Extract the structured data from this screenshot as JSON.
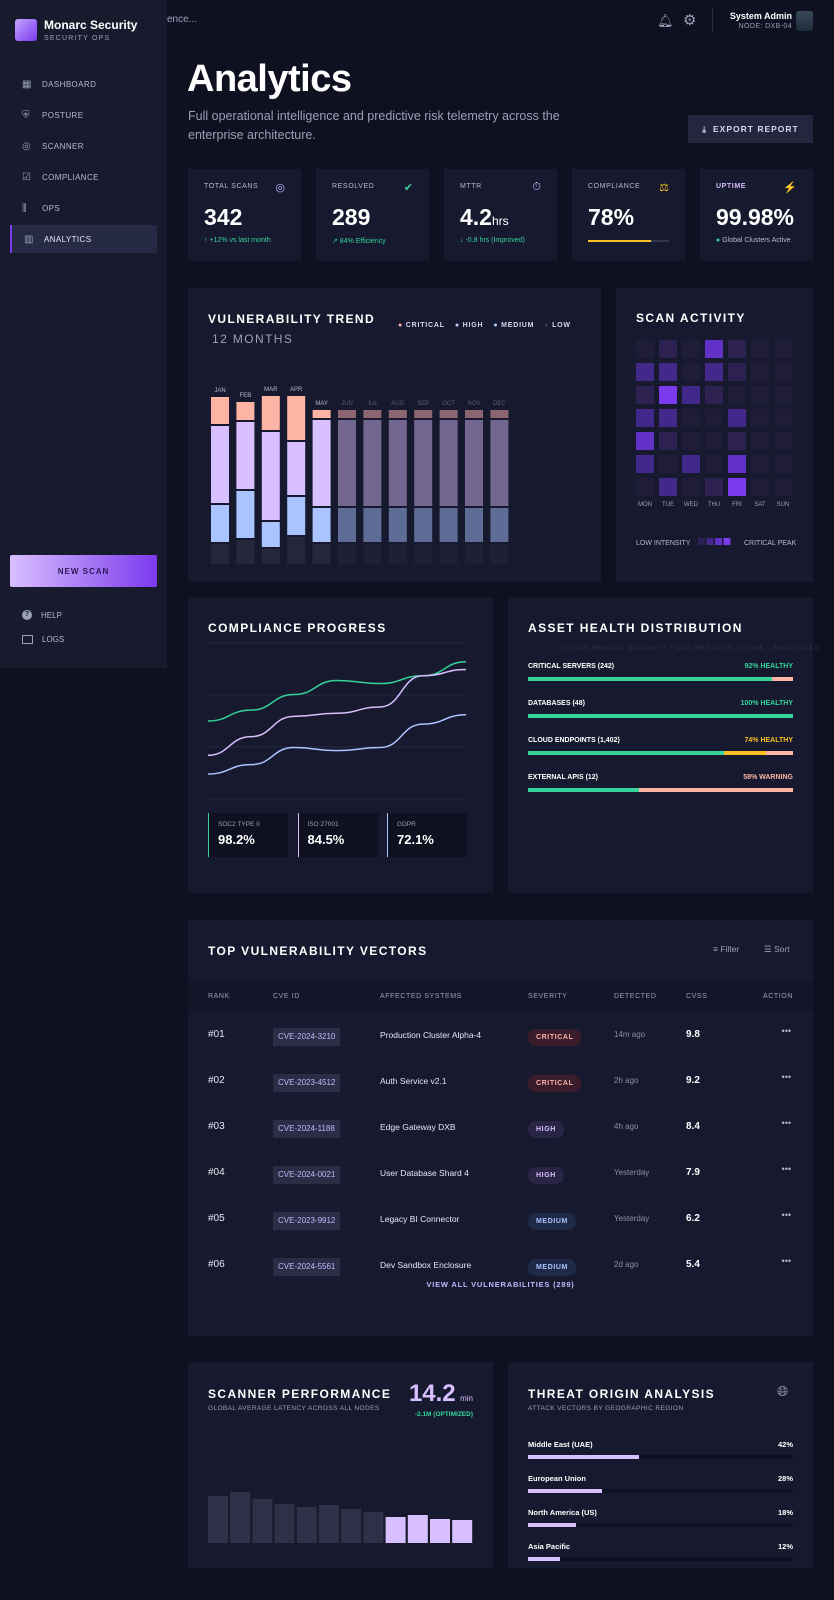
{
  "app": {
    "name": "Monarc Security",
    "subtitle": "SECURITY OPS"
  },
  "sidebar": {
    "items": [
      {
        "label": "DASHBOARD",
        "icon": "dashboard-icon"
      },
      {
        "label": "POSTURE",
        "icon": "shield-icon"
      },
      {
        "label": "SCANNER",
        "icon": "radar-icon"
      },
      {
        "label": "COMPLIANCE",
        "icon": "checklist-icon"
      },
      {
        "label": "OPS",
        "icon": "sliders-icon"
      },
      {
        "label": "ANALYTICS",
        "icon": "chart-icon",
        "active": true
      }
    ],
    "new_scan": "NEW SCAN",
    "help": "HELP",
    "logs": "LOGS"
  },
  "topbar": {
    "search_placeholder_visible": "ence...",
    "user_name": "System Admin",
    "user_node": "NODE: DXB-04"
  },
  "header": {
    "title": "Analytics",
    "subtitle": "Full operational intelligence and predictive risk telemetry across the enterprise architecture.",
    "export": "EXPORT REPORT"
  },
  "kpis": [
    {
      "label": "TOTAL SCANS",
      "value": "342",
      "unit": "",
      "sub": "↑ +12% vs last month",
      "icon": "target-icon",
      "color": "#c4b5fd"
    },
    {
      "label": "RESOLVED",
      "value": "289",
      "unit": "",
      "sub": "↗ 84% Efficiency",
      "icon": "shield-check-icon",
      "color": "#34d399"
    },
    {
      "label": "MTTR",
      "value": "4.2",
      "unit": "hrs",
      "sub": "↓ -0.8 hrs (Improved)",
      "icon": "stopwatch-icon",
      "color": "#c4b5fd"
    },
    {
      "label": "COMPLIANCE",
      "value": "78%",
      "unit": "",
      "sub": "",
      "icon": "gavel-icon",
      "color": "#fbbf24",
      "progress": 78
    },
    {
      "label": "UPTIME",
      "value": "99.98%",
      "unit": "",
      "sub": "Global Clusters Active",
      "icon": "bolt-icon",
      "color": "#c4b5fd"
    }
  ],
  "trend": {
    "title": "VULNERABILITY TREND",
    "period": "12 MONTHS",
    "legend": [
      "CRITICAL",
      "HIGH",
      "MEDIUM",
      "LOW"
    ],
    "colors": [
      "#fdb4a4",
      "#d8bfff",
      "#aac4ff",
      "#25283d"
    ]
  },
  "chart_data": [
    {
      "type": "bar",
      "stacked": true,
      "categories": [
        "JAN",
        "FEB",
        "MAR",
        "APR",
        "MAY",
        "JUN",
        "JUL",
        "AUG",
        "SEP",
        "OCT",
        "NOV",
        "DEC"
      ],
      "series": [
        {
          "name": "CRITICAL",
          "values": [
            29,
            20,
            36,
            46,
            10,
            10,
            10,
            10,
            10,
            10,
            10,
            10
          ]
        },
        {
          "name": "HIGH",
          "values": [
            79,
            69,
            90,
            55,
            88,
            88,
            88,
            88,
            88,
            88,
            88,
            88
          ]
        },
        {
          "name": "MEDIUM",
          "values": [
            39,
            49,
            27,
            40,
            36,
            36,
            36,
            36,
            36,
            36,
            36,
            36
          ]
        },
        {
          "name": "LOW",
          "values": [
            20,
            24,
            15,
            27,
            20,
            20,
            20,
            20,
            20,
            20,
            20,
            20
          ]
        }
      ],
      "projected_from": "JUN"
    },
    {
      "type": "heatmap",
      "title": "SCAN ACTIVITY",
      "x": [
        "MON",
        "TUE",
        "WED",
        "THU",
        "FRI",
        "SAT",
        "SUN"
      ],
      "values": [
        [
          0,
          1,
          0,
          3,
          1,
          0,
          0
        ],
        [
          2,
          2,
          0,
          2,
          1,
          0,
          0
        ],
        [
          1,
          4,
          2,
          1,
          0,
          0,
          0
        ],
        [
          2,
          2,
          0,
          0,
          2,
          0,
          0
        ],
        [
          3,
          1,
          0,
          0,
          1,
          0,
          0
        ],
        [
          2,
          0,
          2,
          0,
          3,
          0,
          0
        ],
        [
          0,
          2,
          0,
          1,
          4,
          0,
          0
        ]
      ],
      "legend_low": "LOW INTENSITY",
      "legend_high": "CRITICAL PEAK"
    },
    {
      "type": "line",
      "title": "COMPLIANCE PROGRESS",
      "series": [
        {
          "name": "SOC2 TYPE II",
          "color": "#34d399",
          "values": [
            50,
            57,
            67,
            76,
            74,
            79,
            88
          ]
        },
        {
          "name": "ISO 27001",
          "color": "#d8bfff",
          "values": [
            28,
            40,
            53,
            55,
            59,
            79,
            83
          ]
        },
        {
          "name": "GDPR",
          "color": "#aac4ff",
          "values": [
            16,
            22,
            33,
            31,
            33,
            48,
            54
          ]
        }
      ]
    },
    {
      "type": "bar",
      "title": "SCANNER PERFORMANCE",
      "values": [
        47,
        51,
        44,
        39,
        36,
        38,
        34,
        31,
        26,
        28,
        24,
        23
      ],
      "highlight_last": 4
    }
  ],
  "compliance": {
    "title": "COMPLIANCE PROGRESS",
    "stats": [
      {
        "label": "SOC2 TYPE II",
        "value": "98.2%",
        "color": "#34d399"
      },
      {
        "label": "ISO 27001",
        "value": "84.5%",
        "color": "#d8bfff"
      },
      {
        "label": "GDPR",
        "value": "72.1%",
        "color": "#aac4ff"
      }
    ]
  },
  "asset": {
    "title": "ASSET HEALTH DISTRIBUTION",
    "watermark": "© 2026 MONARC SECURITY • UAE INFRASTRUCTURE • ENCRYPTED",
    "items": [
      {
        "label": "CRITICAL SERVERS (242)",
        "status": "92% HEALTHY",
        "color": "#34d399",
        "segments": [
          92,
          0,
          8
        ]
      },
      {
        "label": "DATABASES (48)",
        "status": "100% HEALTHY",
        "color": "#34d399",
        "segments": [
          100,
          0,
          0
        ]
      },
      {
        "label": "CLOUD ENDPOINTS (1,402)",
        "status": "74% HEALTHY",
        "color": "#fbbf24",
        "segments": [
          74,
          16,
          10
        ]
      },
      {
        "label": "EXTERNAL APIS (12)",
        "status": "58% WARNING",
        "color": "#fdb4a4",
        "segments": [
          42,
          0,
          58
        ]
      }
    ]
  },
  "table": {
    "title": "TOP VULNERABILITY VECTORS",
    "filter": "Filter",
    "sort": "Sort",
    "columns": [
      "RANK",
      "CVE ID",
      "AFFECTED SYSTEMS",
      "SEVERITY",
      "DETECTED",
      "CVSS",
      "ACTION"
    ],
    "rows": [
      {
        "rank": "#01",
        "cve": "CVE-2024-3210",
        "system": "Production Cluster Alpha-4",
        "severity": "CRITICAL",
        "detected": "14m ago",
        "cvss": "9.8"
      },
      {
        "rank": "#02",
        "cve": "CVE-2023-4512",
        "system": "Auth Service v2.1",
        "severity": "CRITICAL",
        "detected": "2h ago",
        "cvss": "9.2"
      },
      {
        "rank": "#03",
        "cve": "CVE-2024-1188",
        "system": "Edge Gateway DXB",
        "severity": "HIGH",
        "detected": "4h ago",
        "cvss": "8.4"
      },
      {
        "rank": "#04",
        "cve": "CVE-2024-0021",
        "system": "User Database Shard 4",
        "severity": "HIGH",
        "detected": "Yesterday",
        "cvss": "7.9"
      },
      {
        "rank": "#05",
        "cve": "CVE-2023-9912",
        "system": "Legacy BI Connector",
        "severity": "MEDIUM",
        "detected": "Yesterday",
        "cvss": "6.2"
      },
      {
        "rank": "#06",
        "cve": "CVE-2024-5561",
        "system": "Dev Sandbox Enclosure",
        "severity": "MEDIUM",
        "detected": "2d ago",
        "cvss": "5.4"
      }
    ],
    "action": "•••",
    "view_all": "VIEW ALL VULNERABILITIES (289)"
  },
  "scanner": {
    "title": "SCANNER PERFORMANCE",
    "subtitle": "GLOBAL AVERAGE LATENCY ACROSS ALL NODES",
    "value": "14.2",
    "unit": "min",
    "delta": "-2.1M (OPTIMIZED)"
  },
  "threat": {
    "title": "THREAT ORIGIN ANALYSIS",
    "subtitle": "ATTACK VECTORS BY GEOGRAPHIC REGION",
    "regions": [
      {
        "label": "Middle East (UAE)",
        "pct": "42%",
        "value": 42
      },
      {
        "label": "European Union",
        "pct": "28%",
        "value": 28
      },
      {
        "label": "North America (US)",
        "pct": "18%",
        "value": 18
      },
      {
        "label": "Asia Pacific",
        "pct": "12%",
        "value": 12
      }
    ]
  }
}
